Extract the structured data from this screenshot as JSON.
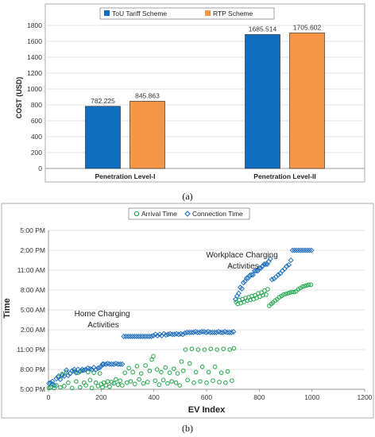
{
  "chart_data": [
    {
      "type": "bar",
      "caption": "(a)",
      "ylabel": "COST (USD)",
      "ylim": [
        0,
        1800
      ],
      "yticks": [
        "0",
        "200",
        "400",
        "600",
        "800",
        "1000",
        "1200",
        "1400",
        "1600",
        "1800"
      ],
      "categories": [
        "Penetration Level-I",
        "Penetration Level-II"
      ],
      "legend_position": "top",
      "series": [
        {
          "name": "ToU Tariff Scheme",
          "values": [
            782.225,
            1685.514
          ],
          "labels": [
            "782.225",
            "1685.514"
          ],
          "color": "#0f6ec0"
        },
        {
          "name": "RTP Scheme",
          "values": [
            845.863,
            1705.602
          ],
          "labels": [
            "845.863",
            "1705.602"
          ],
          "color": "#f79646"
        }
      ]
    },
    {
      "type": "scatter",
      "caption": "(b)",
      "xlabel": "EV Index",
      "ylabel": "Time",
      "xlim": [
        0,
        1200
      ],
      "xticks": [
        "0",
        "200",
        "400",
        "600",
        "800",
        "1000",
        "1200"
      ],
      "ylim": [
        0,
        24
      ],
      "yticks": [
        "5:00 PM",
        "8:00 PM",
        "11:00 PM",
        "2:00 AM",
        "5:00 AM",
        "8:00 AM",
        "11:00 AM",
        "2:00 PM",
        "5:00 PM"
      ],
      "legend_position": "top",
      "annotations": [
        {
          "lines": [
            "Home Charging",
            "Activities"
          ]
        },
        {
          "lines": [
            "Workplace Charging",
            "Activities"
          ]
        }
      ],
      "series": [
        {
          "name": "Arrival Time",
          "color": "#1fa84a",
          "marker": "circle",
          "points": [
            [
              2,
              0.2
            ],
            [
              8,
              0.3
            ],
            [
              15,
              0.8
            ],
            [
              22,
              0.2
            ],
            [
              30,
              0.6
            ],
            [
              38,
              1.8
            ],
            [
              45,
              0.3
            ],
            [
              52,
              2.3
            ],
            [
              60,
              0.5
            ],
            [
              68,
              2.6
            ],
            [
              75,
              1.0
            ],
            [
              82,
              2.4
            ],
            [
              90,
              0.2
            ],
            [
              98,
              2.7
            ],
            [
              105,
              1.2
            ],
            [
              112,
              2.5
            ],
            [
              120,
              0.3
            ],
            [
              128,
              2.8
            ],
            [
              135,
              1.0
            ],
            [
              142,
              0.6
            ],
            [
              150,
              2.6
            ],
            [
              158,
              1.4
            ],
            [
              165,
              0.2
            ],
            [
              172,
              2.5
            ],
            [
              180,
              1.0
            ],
            [
              188,
              0.5
            ],
            [
              195,
              2.4
            ],
            [
              200,
              0.8
            ],
            [
              205,
              0.3
            ],
            [
              210,
              1.0
            ],
            [
              218,
              0.6
            ],
            [
              225,
              1.2
            ],
            [
              232,
              0.4
            ],
            [
              240,
              1.1
            ],
            [
              248,
              0.9
            ],
            [
              256,
              1.5
            ],
            [
              264,
              0.7
            ],
            [
              272,
              1.3
            ],
            [
              280,
              0.6
            ],
            [
              290,
              2.5
            ],
            [
              298,
              1.0
            ],
            [
              305,
              3.2
            ],
            [
              312,
              1.2
            ],
            [
              320,
              2.6
            ],
            [
              328,
              0.8
            ],
            [
              336,
              3.5
            ],
            [
              344,
              1.5
            ],
            [
              352,
              2.4
            ],
            [
              360,
              0.9
            ],
            [
              368,
              3.6
            ],
            [
              376,
              1.1
            ],
            [
              384,
              2.8
            ],
            [
              392,
              4.5
            ],
            [
              398,
              5.0
            ],
            [
              405,
              1.3
            ],
            [
              412,
              3.0
            ],
            [
              420,
              0.7
            ],
            [
              428,
              2.6
            ],
            [
              436,
              1.4
            ],
            [
              444,
              3.3
            ],
            [
              452,
              0.9
            ],
            [
              460,
              2.5
            ],
            [
              468,
              1.2
            ],
            [
              476,
              3.1
            ],
            [
              484,
              1.0
            ],
            [
              490,
              2.4
            ],
            [
              498,
              0.6
            ],
            [
              505,
              4.2
            ],
            [
              512,
              2.8
            ],
            [
              520,
              6.0
            ],
            [
              528,
              1.4
            ],
            [
              536,
              3.9
            ],
            [
              544,
              6.1
            ],
            [
              552,
              1.0
            ],
            [
              560,
              2.6
            ],
            [
              568,
              6.0
            ],
            [
              576,
              1.2
            ],
            [
              584,
              3.4
            ],
            [
              592,
              6.0
            ],
            [
              600,
              1.0
            ],
            [
              608,
              2.6
            ],
            [
              616,
              6.1
            ],
            [
              624,
              1.3
            ],
            [
              632,
              3.4
            ],
            [
              640,
              6.0
            ],
            [
              648,
              1.1
            ],
            [
              656,
              2.5
            ],
            [
              664,
              6.1
            ],
            [
              672,
              1.0
            ],
            [
              680,
              2.7
            ],
            [
              688,
              6.0
            ],
            [
              696,
              1.3
            ],
            [
              704,
              6.2
            ],
            [
              712,
              13.2
            ],
            [
              718,
              12.9
            ],
            [
              724,
              13.5
            ],
            [
              730,
              13.0
            ],
            [
              736,
              13.6
            ],
            [
              742,
              13.2
            ],
            [
              748,
              13.8
            ],
            [
              754,
              13.4
            ],
            [
              760,
              13.9
            ],
            [
              766,
              13.5
            ],
            [
              772,
              14.1
            ],
            [
              778,
              13.6
            ],
            [
              784,
              14.2
            ],
            [
              790,
              13.8
            ],
            [
              796,
              14.5
            ],
            [
              802,
              14.0
            ],
            [
              808,
              14.6
            ],
            [
              814,
              14.2
            ],
            [
              820,
              14.9
            ],
            [
              826,
              14.3
            ],
            [
              832,
              15.1
            ],
            [
              838,
              12.6
            ],
            [
              846,
              12.9
            ],
            [
              852,
              13.1
            ],
            [
              860,
              13.4
            ],
            [
              868,
              13.6
            ],
            [
              876,
              13.9
            ],
            [
              884,
              14.1
            ],
            [
              892,
              14.3
            ],
            [
              900,
              14.4
            ],
            [
              908,
              14.5
            ],
            [
              916,
              14.6
            ],
            [
              924,
              14.7
            ],
            [
              932,
              14.7
            ],
            [
              940,
              14.8
            ],
            [
              948,
              15.1
            ],
            [
              956,
              15.3
            ],
            [
              964,
              15.5
            ],
            [
              972,
              15.6
            ],
            [
              980,
              15.7
            ],
            [
              988,
              15.8
            ],
            [
              996,
              15.8
            ]
          ]
        },
        {
          "name": "Connection Time",
          "color": "#1f6fbf",
          "marker": "diamond",
          "points": [
            [
              2,
              0.9
            ],
            [
              8,
              1.0
            ],
            [
              15,
              1.2
            ],
            [
              22,
              0.6
            ],
            [
              30,
              1.6
            ],
            [
              38,
              2.0
            ],
            [
              45,
              1.5
            ],
            [
              52,
              2.1
            ],
            [
              60,
              2.0
            ],
            [
              68,
              2.9
            ],
            [
              75,
              2.1
            ],
            [
              82,
              2.4
            ],
            [
              90,
              2.8
            ],
            [
              98,
              3.0
            ],
            [
              105,
              2.5
            ],
            [
              112,
              3.0
            ],
            [
              120,
              2.7
            ],
            [
              128,
              3.0
            ],
            [
              135,
              2.9
            ],
            [
              142,
              3.0
            ],
            [
              150,
              3.2
            ],
            [
              158,
              3.1
            ],
            [
              165,
              3.0
            ],
            [
              172,
              3.3
            ],
            [
              180,
              3.0
            ],
            [
              188,
              3.2
            ],
            [
              195,
              3.3
            ],
            [
              200,
              3.5
            ],
            [
              205,
              3.8
            ],
            [
              210,
              3.8
            ],
            [
              218,
              3.8
            ],
            [
              225,
              3.9
            ],
            [
              232,
              3.8
            ],
            [
              240,
              3.8
            ],
            [
              248,
              3.8
            ],
            [
              256,
              3.9
            ],
            [
              264,
              3.8
            ],
            [
              272,
              3.8
            ],
            [
              280,
              3.8
            ],
            [
              286,
              8.0
            ],
            [
              294,
              8.0
            ],
            [
              302,
              8.0
            ],
            [
              310,
              8.0
            ],
            [
              318,
              8.0
            ],
            [
              326,
              8.0
            ],
            [
              334,
              8.0
            ],
            [
              342,
              8.0
            ],
            [
              350,
              8.0
            ],
            [
              358,
              8.0
            ],
            [
              366,
              8.0
            ],
            [
              374,
              8.0
            ],
            [
              382,
              8.0
            ],
            [
              390,
              8.0
            ],
            [
              398,
              8.1
            ],
            [
              406,
              8.3
            ],
            [
              414,
              8.1
            ],
            [
              422,
              8.3
            ],
            [
              430,
              8.1
            ],
            [
              438,
              8.4
            ],
            [
              446,
              8.2
            ],
            [
              454,
              8.3
            ],
            [
              462,
              8.4
            ],
            [
              470,
              8.3
            ],
            [
              478,
              8.3
            ],
            [
              486,
              8.4
            ],
            [
              494,
              8.3
            ],
            [
              502,
              8.4
            ],
            [
              510,
              8.3
            ],
            [
              518,
              8.5
            ],
            [
              526,
              8.6
            ],
            [
              534,
              8.6
            ],
            [
              542,
              8.6
            ],
            [
              550,
              8.6
            ],
            [
              558,
              8.7
            ],
            [
              566,
              8.6
            ],
            [
              574,
              8.6
            ],
            [
              582,
              8.7
            ],
            [
              590,
              8.7
            ],
            [
              598,
              8.6
            ],
            [
              606,
              8.7
            ],
            [
              614,
              8.6
            ],
            [
              622,
              8.6
            ],
            [
              630,
              8.6
            ],
            [
              638,
              8.6
            ],
            [
              646,
              8.7
            ],
            [
              654,
              8.6
            ],
            [
              662,
              8.6
            ],
            [
              670,
              8.7
            ],
            [
              678,
              8.6
            ],
            [
              686,
              8.6
            ],
            [
              694,
              8.6
            ],
            [
              702,
              8.7
            ],
            [
              710,
              13.6
            ],
            [
              716,
              14.1
            ],
            [
              722,
              14.5
            ],
            [
              728,
              15.4
            ],
            [
              734,
              15.2
            ],
            [
              740,
              16.1
            ],
            [
              746,
              16.3
            ],
            [
              752,
              16.8
            ],
            [
              758,
              16.8
            ],
            [
              764,
              17.2
            ],
            [
              770,
              17.3
            ],
            [
              776,
              17.3
            ],
            [
              782,
              17.9
            ],
            [
              788,
              17.9
            ],
            [
              794,
              17.9
            ],
            [
              800,
              18.3
            ],
            [
              806,
              18.3
            ],
            [
              812,
              18.6
            ],
            [
              818,
              18.9
            ],
            [
              824,
              18.9
            ],
            [
              830,
              18.9
            ],
            [
              836,
              19.3
            ],
            [
              842,
              19.7
            ],
            [
              848,
              16.6
            ],
            [
              856,
              16.7
            ],
            [
              864,
              17.0
            ],
            [
              872,
              17.3
            ],
            [
              880,
              17.5
            ],
            [
              888,
              17.9
            ],
            [
              896,
              18.2
            ],
            [
              904,
              18.6
            ],
            [
              912,
              18.8
            ],
            [
              920,
              19.5
            ],
            [
              926,
              21.0
            ],
            [
              934,
              21.0
            ],
            [
              942,
              21.0
            ],
            [
              950,
              21.0
            ],
            [
              958,
              21.0
            ],
            [
              966,
              21.0
            ],
            [
              974,
              21.0
            ],
            [
              982,
              21.0
            ],
            [
              990,
              21.0
            ],
            [
              998,
              21.0
            ]
          ]
        }
      ]
    }
  ]
}
